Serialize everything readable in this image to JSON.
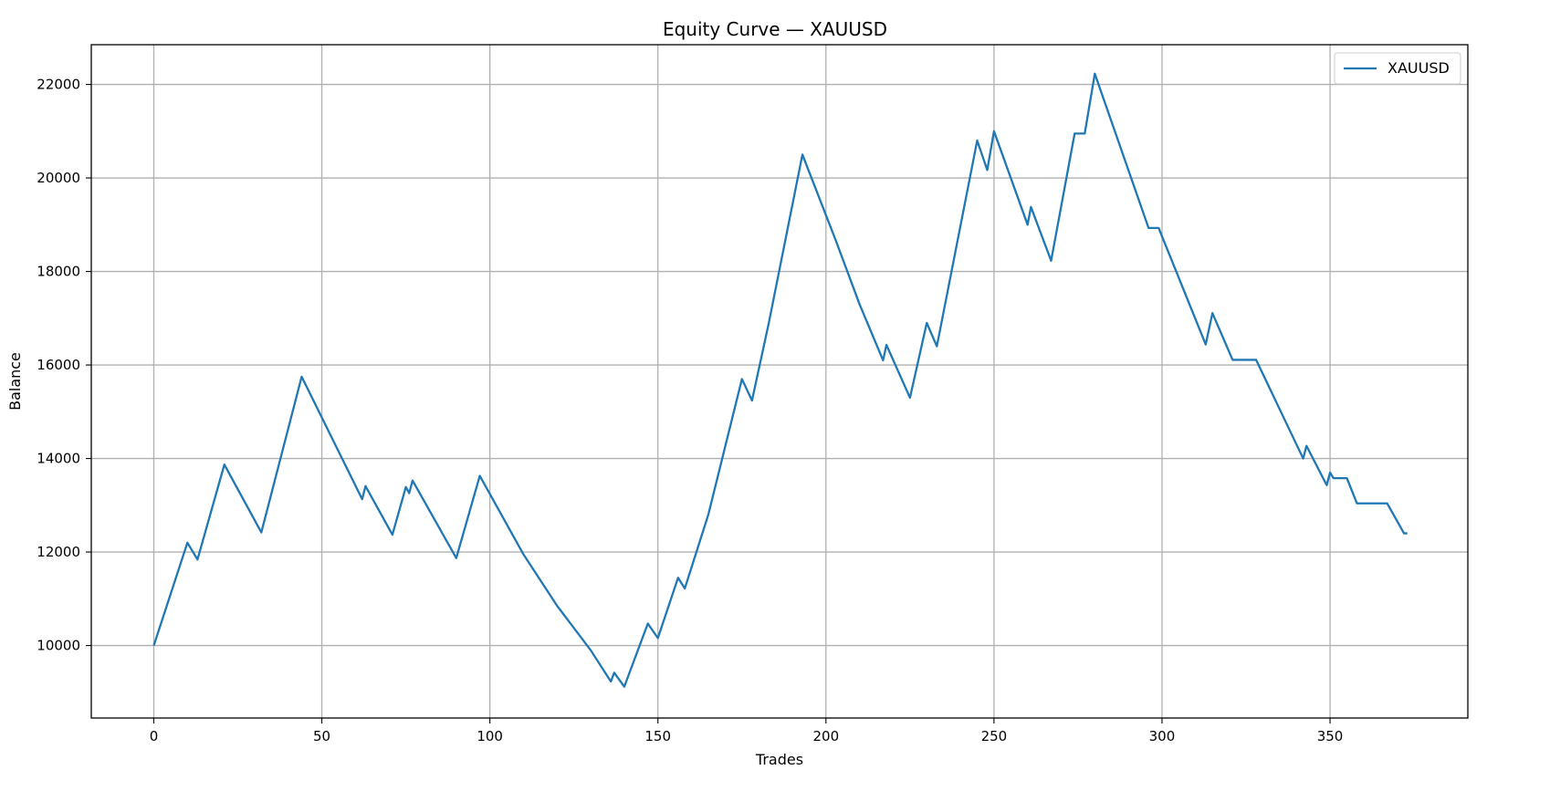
{
  "chart_data": {
    "type": "line",
    "title": "Equity Curve — XAUUSD",
    "xlabel": "Trades",
    "ylabel": "Balance",
    "xlim": [
      -18.6,
      391
    ],
    "ylim": [
      8450,
      22850
    ],
    "xticks": [
      0,
      50,
      100,
      150,
      200,
      250,
      300,
      350
    ],
    "yticks": [
      10000,
      12000,
      14000,
      16000,
      18000,
      20000,
      22000
    ],
    "grid": true,
    "legend_position": "top-right",
    "series": [
      {
        "name": "XAUUSD",
        "color": "#1f77b4",
        "points": [
          [
            0,
            10000
          ],
          [
            10,
            12200
          ],
          [
            13,
            11840
          ],
          [
            21,
            13870
          ],
          [
            32,
            12420
          ],
          [
            44,
            15750
          ],
          [
            62,
            13130
          ],
          [
            63,
            13410
          ],
          [
            71,
            12370
          ],
          [
            75,
            13390
          ],
          [
            76,
            13260
          ],
          [
            77,
            13530
          ],
          [
            90,
            11870
          ],
          [
            97,
            13630
          ],
          [
            110,
            11950
          ],
          [
            120,
            10850
          ],
          [
            130,
            9900
          ],
          [
            136,
            9230
          ],
          [
            137,
            9420
          ],
          [
            140,
            9120
          ],
          [
            147,
            10470
          ],
          [
            150,
            10160
          ],
          [
            156,
            11450
          ],
          [
            158,
            11220
          ],
          [
            165,
            12800
          ],
          [
            175,
            15700
          ],
          [
            178,
            15240
          ],
          [
            183,
            16900
          ],
          [
            193,
            20500
          ],
          [
            203,
            18650
          ],
          [
            210,
            17300
          ],
          [
            217,
            16100
          ],
          [
            218,
            16430
          ],
          [
            225,
            15300
          ],
          [
            230,
            16900
          ],
          [
            233,
            16400
          ],
          [
            245,
            20800
          ],
          [
            248,
            20170
          ],
          [
            250,
            21000
          ],
          [
            260,
            19000
          ],
          [
            261,
            19380
          ],
          [
            267,
            18230
          ],
          [
            274,
            20950
          ],
          [
            277,
            20950
          ],
          [
            280,
            22230
          ],
          [
            296,
            18930
          ],
          [
            299,
            18930
          ],
          [
            313,
            16440
          ],
          [
            315,
            17110
          ],
          [
            321,
            16110
          ],
          [
            328,
            16110
          ],
          [
            342,
            14000
          ],
          [
            343,
            14270
          ],
          [
            349,
            13430
          ],
          [
            350,
            13700
          ],
          [
            351,
            13580
          ],
          [
            355,
            13580
          ],
          [
            358,
            13040
          ],
          [
            367,
            13040
          ],
          [
            372,
            12400
          ],
          [
            373,
            12400
          ]
        ]
      }
    ]
  }
}
